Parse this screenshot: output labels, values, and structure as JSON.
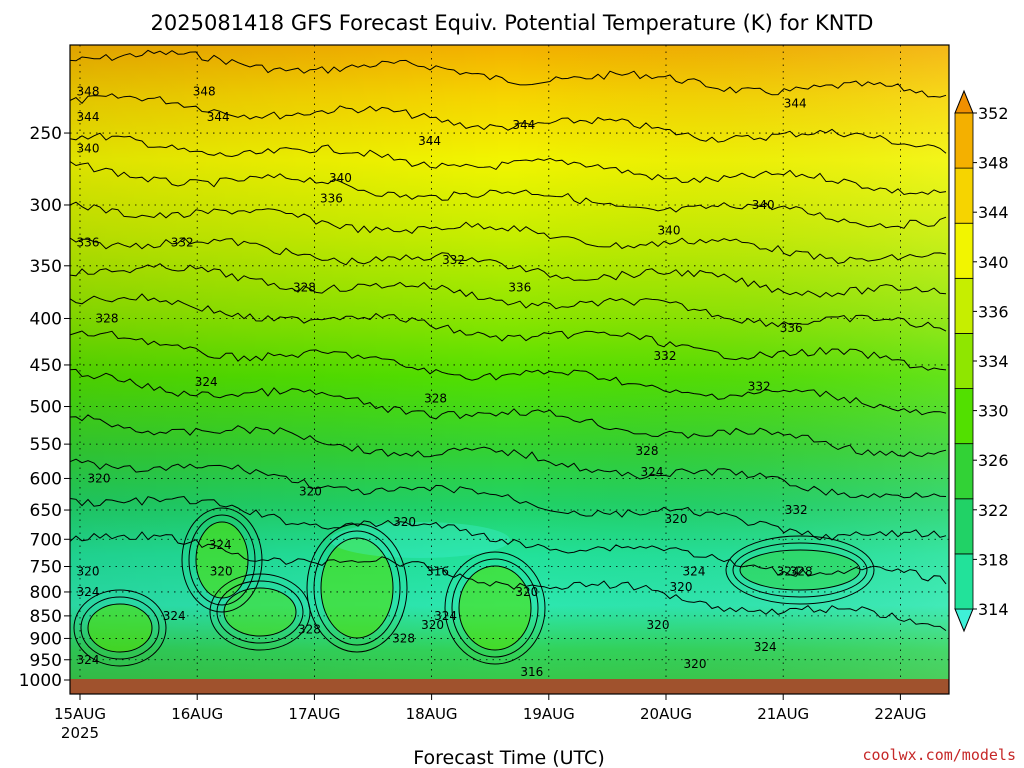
{
  "chart_data": {
    "type": "heatmap",
    "title": "2025081418 GFS Forecast Equiv. Potential Temperature (K) for KNTD",
    "xlabel": "Forecast Time (UTC)",
    "ylabel": "",
    "y_scale": "log-pressure",
    "ylim": [
      1000,
      200
    ],
    "y_ticks": [
      250,
      300,
      350,
      400,
      450,
      500,
      550,
      600,
      650,
      700,
      750,
      800,
      850,
      900,
      950,
      1000
    ],
    "x_ticks": [
      "15AUG",
      "16AUG",
      "17AUG",
      "18AUG",
      "19AUG",
      "20AUG",
      "21AUG",
      "22AUG"
    ],
    "x_year_label": "2025",
    "grid": true,
    "colorbar": {
      "levels": [
        314,
        318,
        322,
        326,
        330,
        334,
        336,
        340,
        344,
        348,
        352
      ],
      "colors": [
        "#3ff0d8",
        "#22e29a",
        "#21d266",
        "#32d236",
        "#52e000",
        "#8fe600",
        "#c6ee00",
        "#f2f500",
        "#f6d400",
        "#f4b000",
        "#f08f00"
      ]
    },
    "contour_labels": [
      {
        "time": "15AUG",
        "pressure": 225,
        "value": "348"
      },
      {
        "time": "16AUG",
        "pressure": 225,
        "value": "348"
      },
      {
        "time": "15AUG",
        "pressure": 240,
        "value": "344"
      },
      {
        "time": "16AUG",
        "pressure": 240,
        "value": "344"
      },
      {
        "time": "18AUG",
        "pressure": 255,
        "value": "344"
      },
      {
        "time": "19AUG",
        "pressure": 245,
        "value": "344"
      },
      {
        "time": "21AUG",
        "pressure": 232,
        "value": "344"
      },
      {
        "time": "15AUG",
        "pressure": 260,
        "value": "340"
      },
      {
        "time": "17AUG",
        "pressure": 280,
        "value": "340"
      },
      {
        "time": "20AUG",
        "pressure": 320,
        "value": "340"
      },
      {
        "time": "21AUG",
        "pressure": 300,
        "value": "340"
      },
      {
        "time": "17AUG",
        "pressure": 295,
        "value": "336"
      },
      {
        "time": "15AUG",
        "pressure": 330,
        "value": "336"
      },
      {
        "time": "19AUG",
        "pressure": 370,
        "value": "336"
      },
      {
        "time": "21AUG",
        "pressure": 410,
        "value": "336"
      },
      {
        "time": "16AUG",
        "pressure": 330,
        "value": "332"
      },
      {
        "time": "18AUG",
        "pressure": 345,
        "value": "332"
      },
      {
        "time": "20AUG",
        "pressure": 440,
        "value": "332"
      },
      {
        "time": "21AUG",
        "pressure": 475,
        "value": "332"
      },
      {
        "time": "21AUG",
        "pressure": 650,
        "value": "332"
      },
      {
        "time": "17AUG",
        "pressure": 370,
        "value": "328"
      },
      {
        "time": "15AUG",
        "pressure": 400,
        "value": "328"
      },
      {
        "time": "18AUG",
        "pressure": 490,
        "value": "328"
      },
      {
        "time": "20AUG",
        "pressure": 560,
        "value": "328"
      },
      {
        "time": "21AUG",
        "pressure": 760,
        "value": "328"
      },
      {
        "time": "17AUG",
        "pressure": 880,
        "value": "328"
      },
      {
        "time": "18AUG",
        "pressure": 900,
        "value": "328"
      },
      {
        "time": "16AUG",
        "pressure": 470,
        "value": "324"
      },
      {
        "time": "20AUG",
        "pressure": 590,
        "value": "324"
      },
      {
        "time": "16AUG",
        "pressure": 710,
        "value": "324"
      },
      {
        "time": "15AUG",
        "pressure": 800,
        "value": "324"
      },
      {
        "time": "16AUG",
        "pressure": 850,
        "value": "324"
      },
      {
        "time": "18AUG",
        "pressure": 850,
        "value": "324"
      },
      {
        "time": "15AUG",
        "pressure": 950,
        "value": "324"
      },
      {
        "time": "20AUG",
        "pressure": 760,
        "value": "324"
      },
      {
        "time": "21AUG",
        "pressure": 760,
        "value": "324"
      },
      {
        "time": "21AUG",
        "pressure": 920,
        "value": "324"
      },
      {
        "time": "15AUG",
        "pressure": 600,
        "value": "320"
      },
      {
        "time": "17AUG",
        "pressure": 620,
        "value": "320"
      },
      {
        "time": "18AUG",
        "pressure": 670,
        "value": "320"
      },
      {
        "time": "20AUG",
        "pressure": 665,
        "value": "320"
      },
      {
        "time": "15AUG",
        "pressure": 760,
        "value": "320"
      },
      {
        "time": "16AUG",
        "pressure": 760,
        "value": "320"
      },
      {
        "time": "18AUG",
        "pressure": 870,
        "value": "320"
      },
      {
        "time": "19AUG",
        "pressure": 800,
        "value": "320"
      },
      {
        "time": "20AUG",
        "pressure": 790,
        "value": "320"
      },
      {
        "time": "20AUG",
        "pressure": 870,
        "value": "320"
      },
      {
        "time": "20AUG",
        "pressure": 960,
        "value": "320"
      },
      {
        "time": "18AUG",
        "pressure": 760,
        "value": "316"
      },
      {
        "time": "19AUG",
        "pressure": 980,
        "value": "316"
      }
    ]
  },
  "footer": {
    "credit": "coolwx.com/models"
  }
}
